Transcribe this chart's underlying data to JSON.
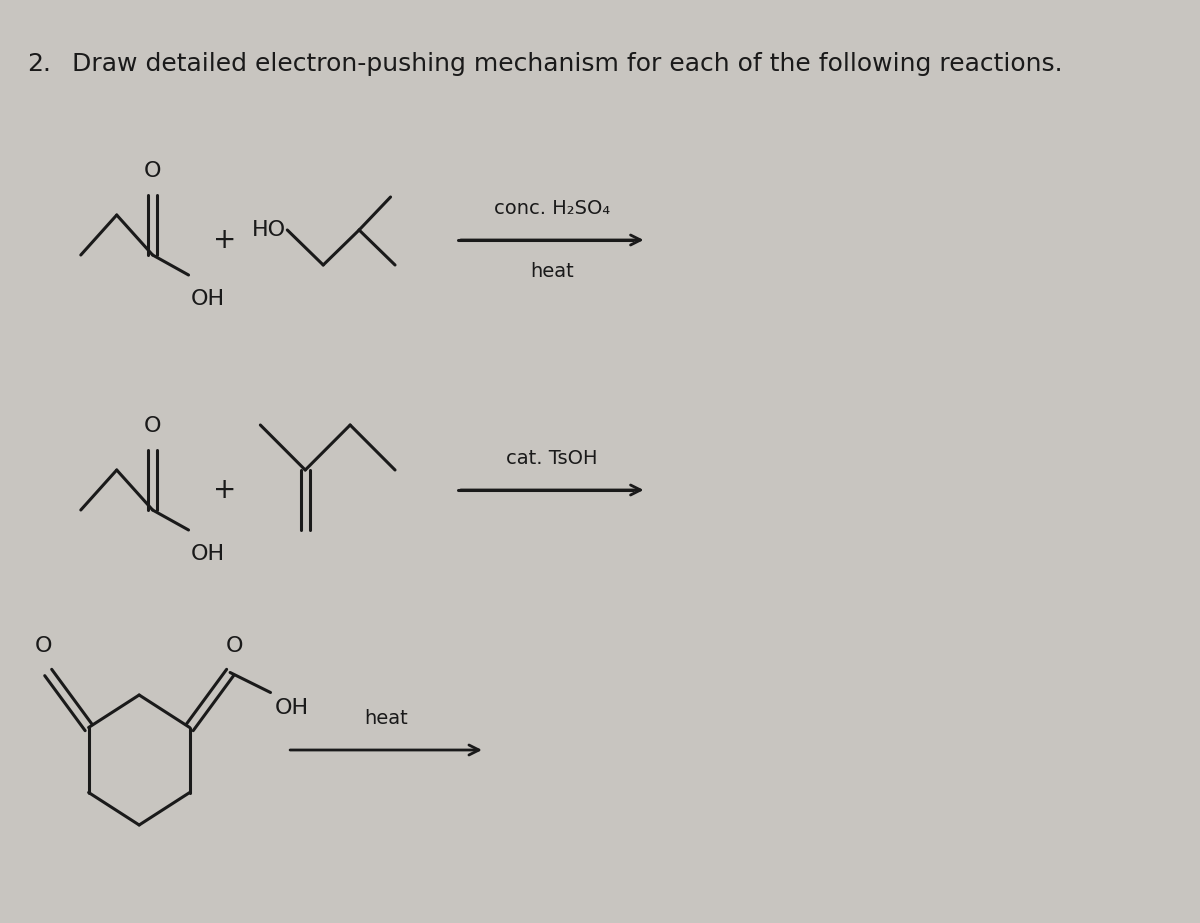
{
  "title_number": "2.",
  "title_text": "Draw detailed electron-pushing mechanism for each of the following reactions.",
  "background_color": "#c8c5c0",
  "text_color": "#1a1a1a",
  "line_color": "#1a1a1a",
  "title_fontsize": 18,
  "label_fontsize": 16,
  "reaction1_condition_top": "conc. H₂SO₄",
  "reaction1_condition_bottom": "heat",
  "reaction2_condition_top": "cat. TsOH",
  "reaction3_condition": "heat",
  "arrow_color": "#1a1a1a"
}
